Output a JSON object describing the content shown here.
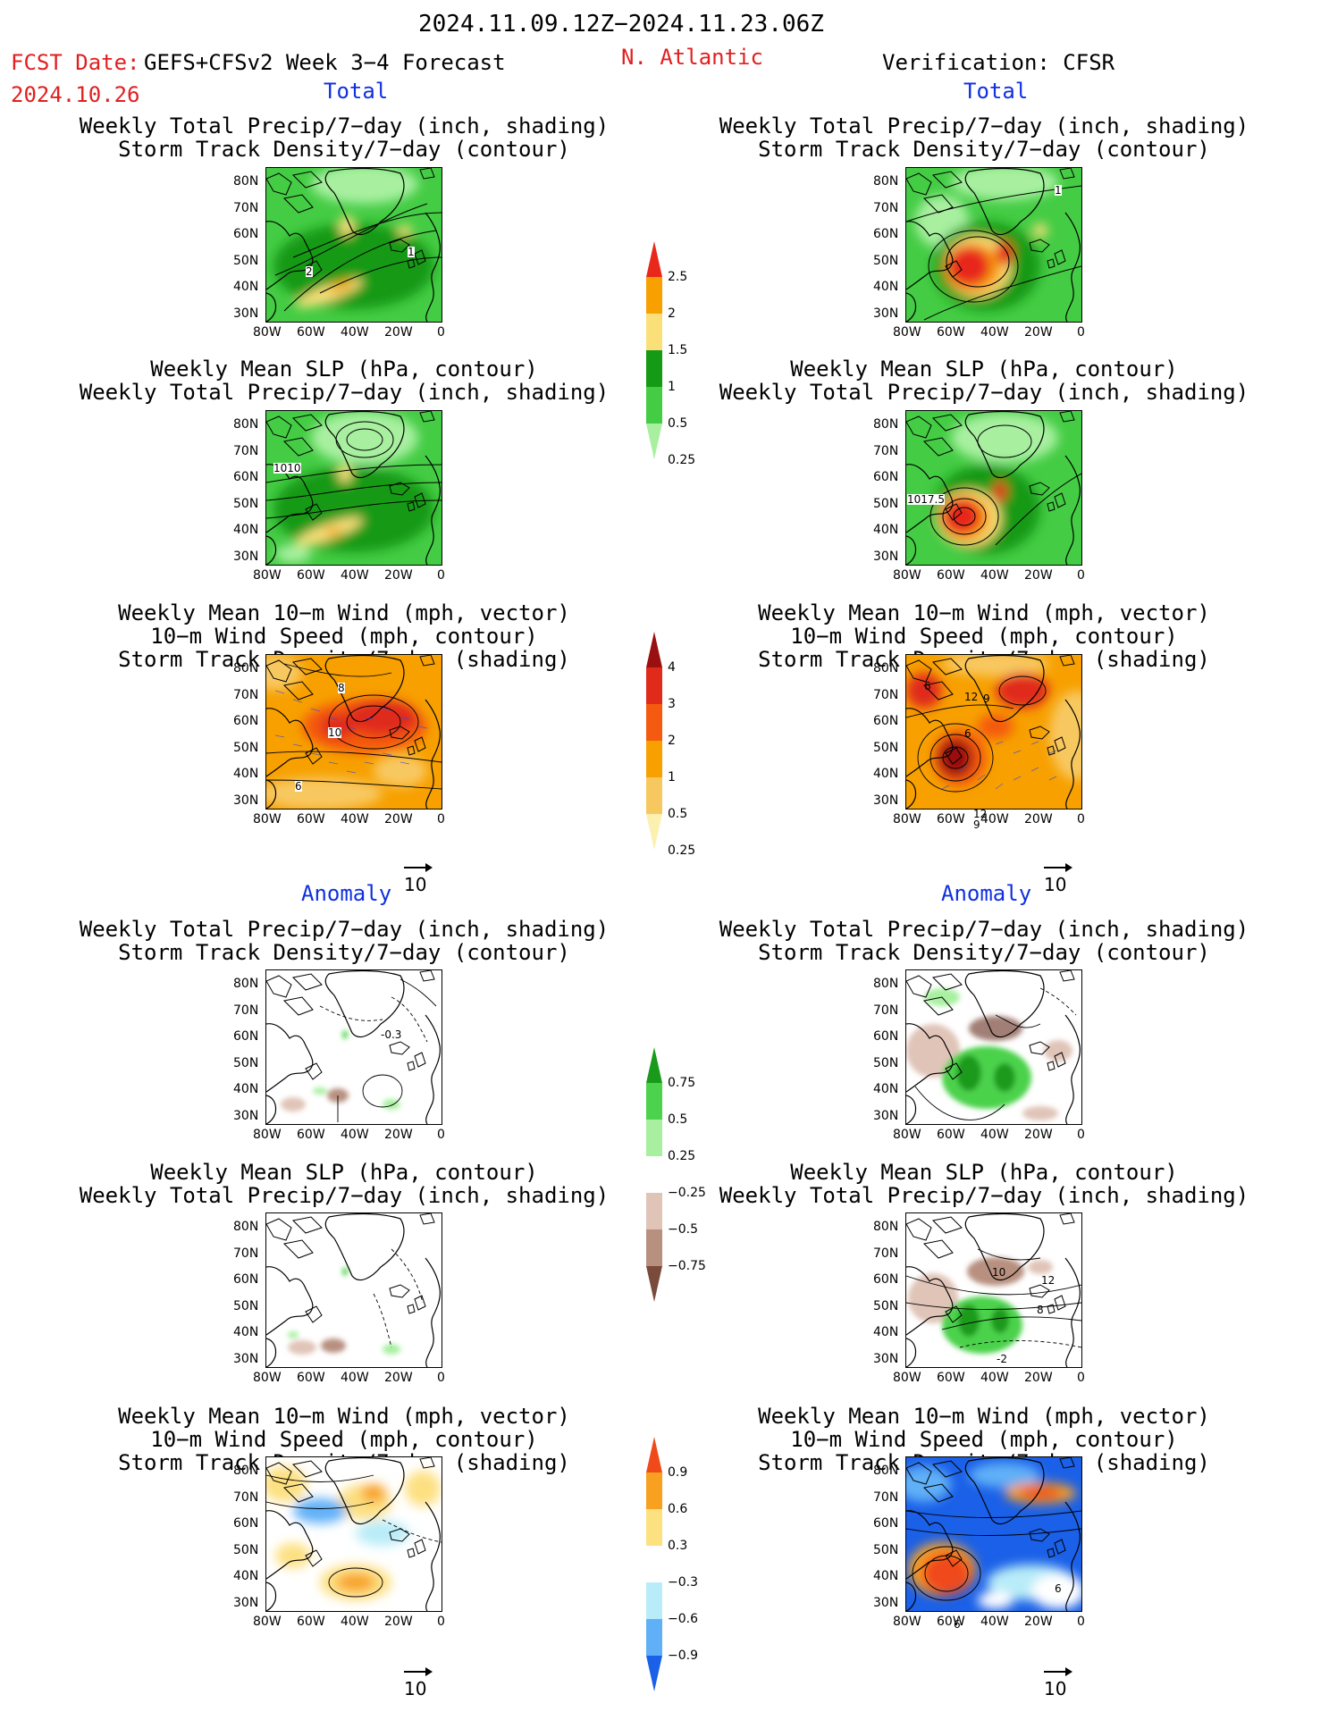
{
  "header": {
    "period": "2024.11.09.12Z−2024.11.23.06Z",
    "fcst_date_label": "FCST Date:",
    "fcst_date": "2024.10.26",
    "model": "GEFS+CFSv2 Week 3−4 Forecast",
    "region": "N. Atlantic",
    "verification": "Verification: CFSR"
  },
  "sections": {
    "total": "Total",
    "anomaly": "Anomaly"
  },
  "panel_titles": {
    "precip_track": [
      "Weekly Total Precip/7−day (inch, shading)",
      "Storm Track Density/7−day (contour)"
    ],
    "slp_precip": [
      "Weekly Mean SLP (hPa, contour)",
      "Weekly Total Precip/7−day (inch, shading)"
    ],
    "wind_track": [
      "Weekly Mean 10−m Wind (mph, vector)",
      "10−m Wind Speed (mph, contour)",
      "Storm Track Density/7−day (shading)"
    ]
  },
  "axes": {
    "lat_ticks": [
      "80N",
      "70N",
      "60N",
      "50N",
      "40N",
      "30N"
    ],
    "lon_ticks": [
      "80W",
      "60W",
      "40W",
      "20W",
      "0"
    ]
  },
  "vector_reference": "10",
  "contour_labels": {
    "fc_track": [
      "2",
      "1"
    ],
    "ob_track": [
      "1"
    ],
    "fc_slp": [
      "1010"
    ],
    "ob_slp": [
      "1017.5"
    ],
    "fc_wind": [
      "8",
      "10",
      "6"
    ],
    "ob_wind": [
      "6",
      "12",
      "9",
      "6",
      "12",
      "9"
    ],
    "fa_track": [
      "-0.3"
    ],
    "oa_slp": [
      "10",
      "12",
      "8",
      "-2"
    ],
    "oa_wind": [
      "6",
      "6"
    ]
  },
  "colorbars": {
    "precip_total": {
      "labels": [
        "2.5",
        "2",
        "1.5",
        "1",
        "0.5",
        "0.25"
      ],
      "colors": [
        "#e8281a",
        "#f7a000",
        "#fbe07a",
        "#149a14",
        "#44cc44",
        "#a8f0a0"
      ]
    },
    "track_total": {
      "labels": [
        "4",
        "3",
        "2",
        "1",
        "0.5",
        "0.25"
      ],
      "colors": [
        "#9a1010",
        "#e02a1a",
        "#f45a10",
        "#f7a000",
        "#f8c860",
        "#fcf0b0"
      ]
    },
    "precip_anom": {
      "labels": [
        "0.75",
        "0.5",
        "0.25",
        "−0.25",
        "−0.5",
        "−0.75"
      ],
      "colors": [
        "#1a9a1a",
        "#4cd24c",
        "#a8f0a0",
        "#ffffff",
        "#e0c4b8",
        "#b89080",
        "#7a4a3a"
      ]
    },
    "track_anom": {
      "labels": [
        "0.9",
        "0.6",
        "0.3",
        "−0.3",
        "−0.6",
        "−0.9"
      ],
      "colors": [
        "#f04a1a",
        "#f8a020",
        "#fde080",
        "#ffffff",
        "#b8ecf8",
        "#60b0f8",
        "#1a60e8"
      ]
    }
  }
}
